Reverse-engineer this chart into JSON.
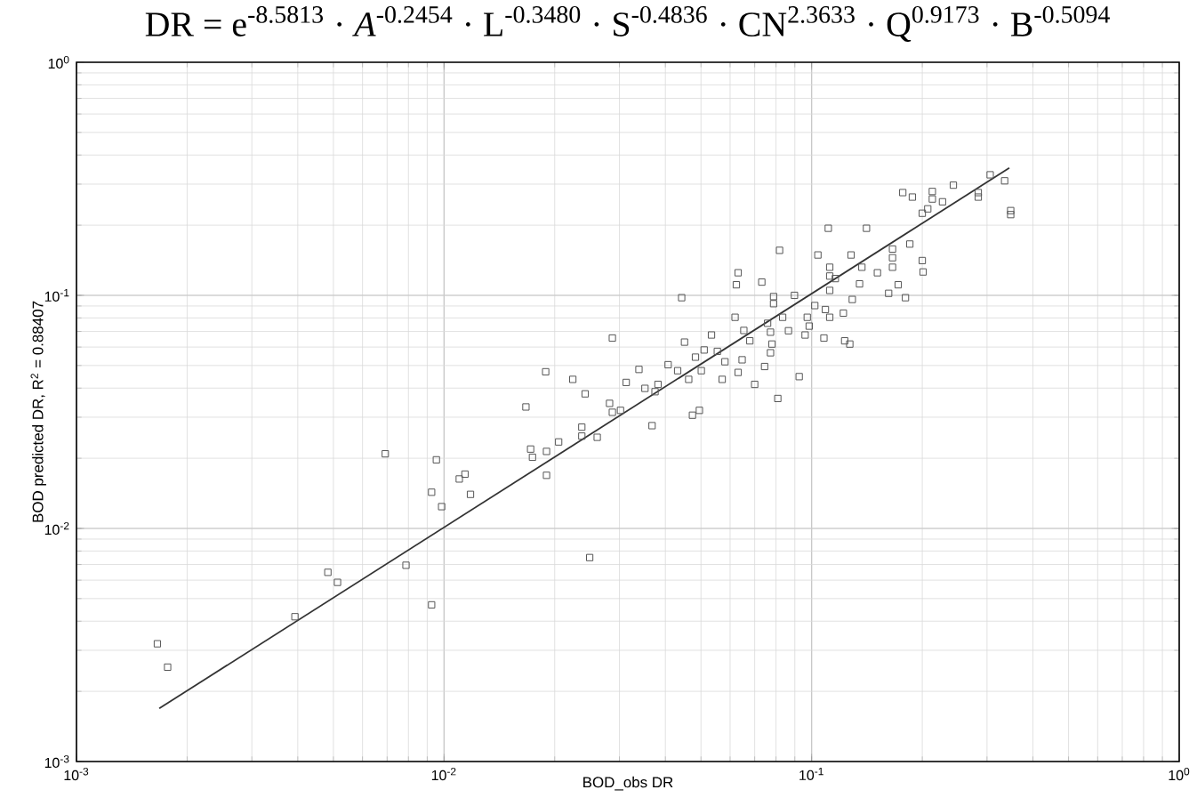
{
  "chart_data": {
    "type": "scatter",
    "title": "DR = e$^{-8.5813}$ · *A*$^{-0.2454}$ · L$^{-0.3480}$ · S$^{-0.4836}$ · CN$^{2.3633}$ · Q$^{0.9173}$ · B$^{-0.5094}$",
    "xlabel": "BOD_obs DR",
    "ylabel": "BOD predicted DR, R$^{2}$ = 0.88407",
    "log": "xy",
    "grid": true,
    "xlim": [
      0.001,
      1
    ],
    "ylim": [
      0.001,
      1
    ],
    "xticks": [
      {
        "value": 0.001,
        "label": "10$^{-3}$"
      },
      {
        "value": 0.01,
        "label": "10$^{-2}$"
      },
      {
        "value": 0.1,
        "label": "10$^{-1}$"
      },
      {
        "value": 1,
        "label": "10$^{0}$"
      }
    ],
    "yticks": [
      {
        "value": 0.001,
        "label": "10$^{-3}$"
      },
      {
        "value": 0.01,
        "label": "10$^{-2}$"
      },
      {
        "value": 0.1,
        "label": "10$^{-1}$"
      },
      {
        "value": 1,
        "label": "10$^{0}$"
      }
    ],
    "series": [
      {
        "marker": "square",
        "color": "#555555",
        "x": [
          0.00166,
          0.00177,
          0.00393,
          0.00483,
          0.00513,
          0.00692,
          0.00788,
          0.00925,
          0.00925,
          0.00953,
          0.00985,
          0.011,
          0.0114,
          0.0118,
          0.0167,
          0.0172,
          0.0174,
          0.0189,
          0.019,
          0.019,
          0.0205,
          0.0224,
          0.0242,
          0.0237,
          0.0237,
          0.0249,
          0.0261,
          0.0287,
          0.0282,
          0.0287,
          0.0302,
          0.0313,
          0.0339,
          0.0352,
          0.0368,
          0.0375,
          0.0382,
          0.0407,
          0.0432,
          0.0443,
          0.0451,
          0.0463,
          0.0474,
          0.0495,
          0.0483,
          0.0501,
          0.051,
          0.0534,
          0.0554,
          0.0571,
          0.0581,
          0.0619,
          0.0631,
          0.0624,
          0.0631,
          0.0647,
          0.0654,
          0.0679,
          0.07,
          0.0732,
          0.0745,
          0.0759,
          0.0773,
          0.078,
          0.0773,
          0.0788,
          0.0788,
          0.0809,
          0.0818,
          0.0834,
          0.0865,
          0.0898,
          0.0925,
          0.096,
          0.0973,
          0.0985,
          0.102,
          0.104,
          0.108,
          0.109,
          0.111,
          0.112,
          0.112,
          0.112,
          0.112,
          0.116,
          0.122,
          0.123,
          0.127,
          0.128,
          0.129,
          0.135,
          0.137,
          0.141,
          0.151,
          0.162,
          0.166,
          0.166,
          0.166,
          0.172,
          0.18,
          0.177,
          0.185,
          0.188,
          0.2,
          0.201,
          0.2,
          0.207,
          0.213,
          0.213,
          0.227,
          0.243,
          0.284,
          0.284,
          0.306,
          0.335,
          0.348,
          0.348
        ],
        "values": [
          0.0032,
          0.00254,
          0.00418,
          0.00648,
          0.00587,
          0.0209,
          0.00695,
          0.0143,
          0.0047,
          0.0197,
          0.0124,
          0.0163,
          0.0171,
          0.014,
          0.0332,
          0.0219,
          0.0202,
          0.047,
          0.0214,
          0.0169,
          0.0235,
          0.0436,
          0.0378,
          0.0272,
          0.0249,
          0.0075,
          0.0246,
          0.0656,
          0.0344,
          0.0315,
          0.0321,
          0.0423,
          0.0481,
          0.0399,
          0.0276,
          0.0386,
          0.0415,
          0.0504,
          0.0475,
          0.0977,
          0.063,
          0.0436,
          0.0306,
          0.0321,
          0.0543,
          0.0475,
          0.0583,
          0.0676,
          0.0575,
          0.0436,
          0.0519,
          0.0805,
          0.125,
          0.111,
          0.0467,
          0.0529,
          0.0707,
          0.0638,
          0.0415,
          0.114,
          0.0495,
          0.0759,
          0.0695,
          0.0618,
          0.0567,
          0.0988,
          0.0921,
          0.0361,
          0.156,
          0.0805,
          0.0705,
          0.1,
          0.0448,
          0.0676,
          0.0805,
          0.0738,
          0.0904,
          0.149,
          0.0656,
          0.0869,
          0.194,
          0.132,
          0.121,
          0.105,
          0.0805,
          0.118,
          0.0839,
          0.0638,
          0.0618,
          0.149,
          0.096,
          0.112,
          0.132,
          0.194,
          0.125,
          0.102,
          0.158,
          0.145,
          0.132,
          0.111,
          0.0977,
          0.276,
          0.166,
          0.264,
          0.141,
          0.126,
          0.225,
          0.235,
          0.279,
          0.259,
          0.252,
          0.297,
          0.276,
          0.264,
          0.329,
          0.31,
          0.231,
          0.222
        ]
      },
      {
        "type": "line",
        "marker": "none",
        "color": "#333333",
        "x": [
          0.00168,
          0.345
        ],
        "values": [
          0.00169,
          0.352
        ]
      }
    ]
  }
}
